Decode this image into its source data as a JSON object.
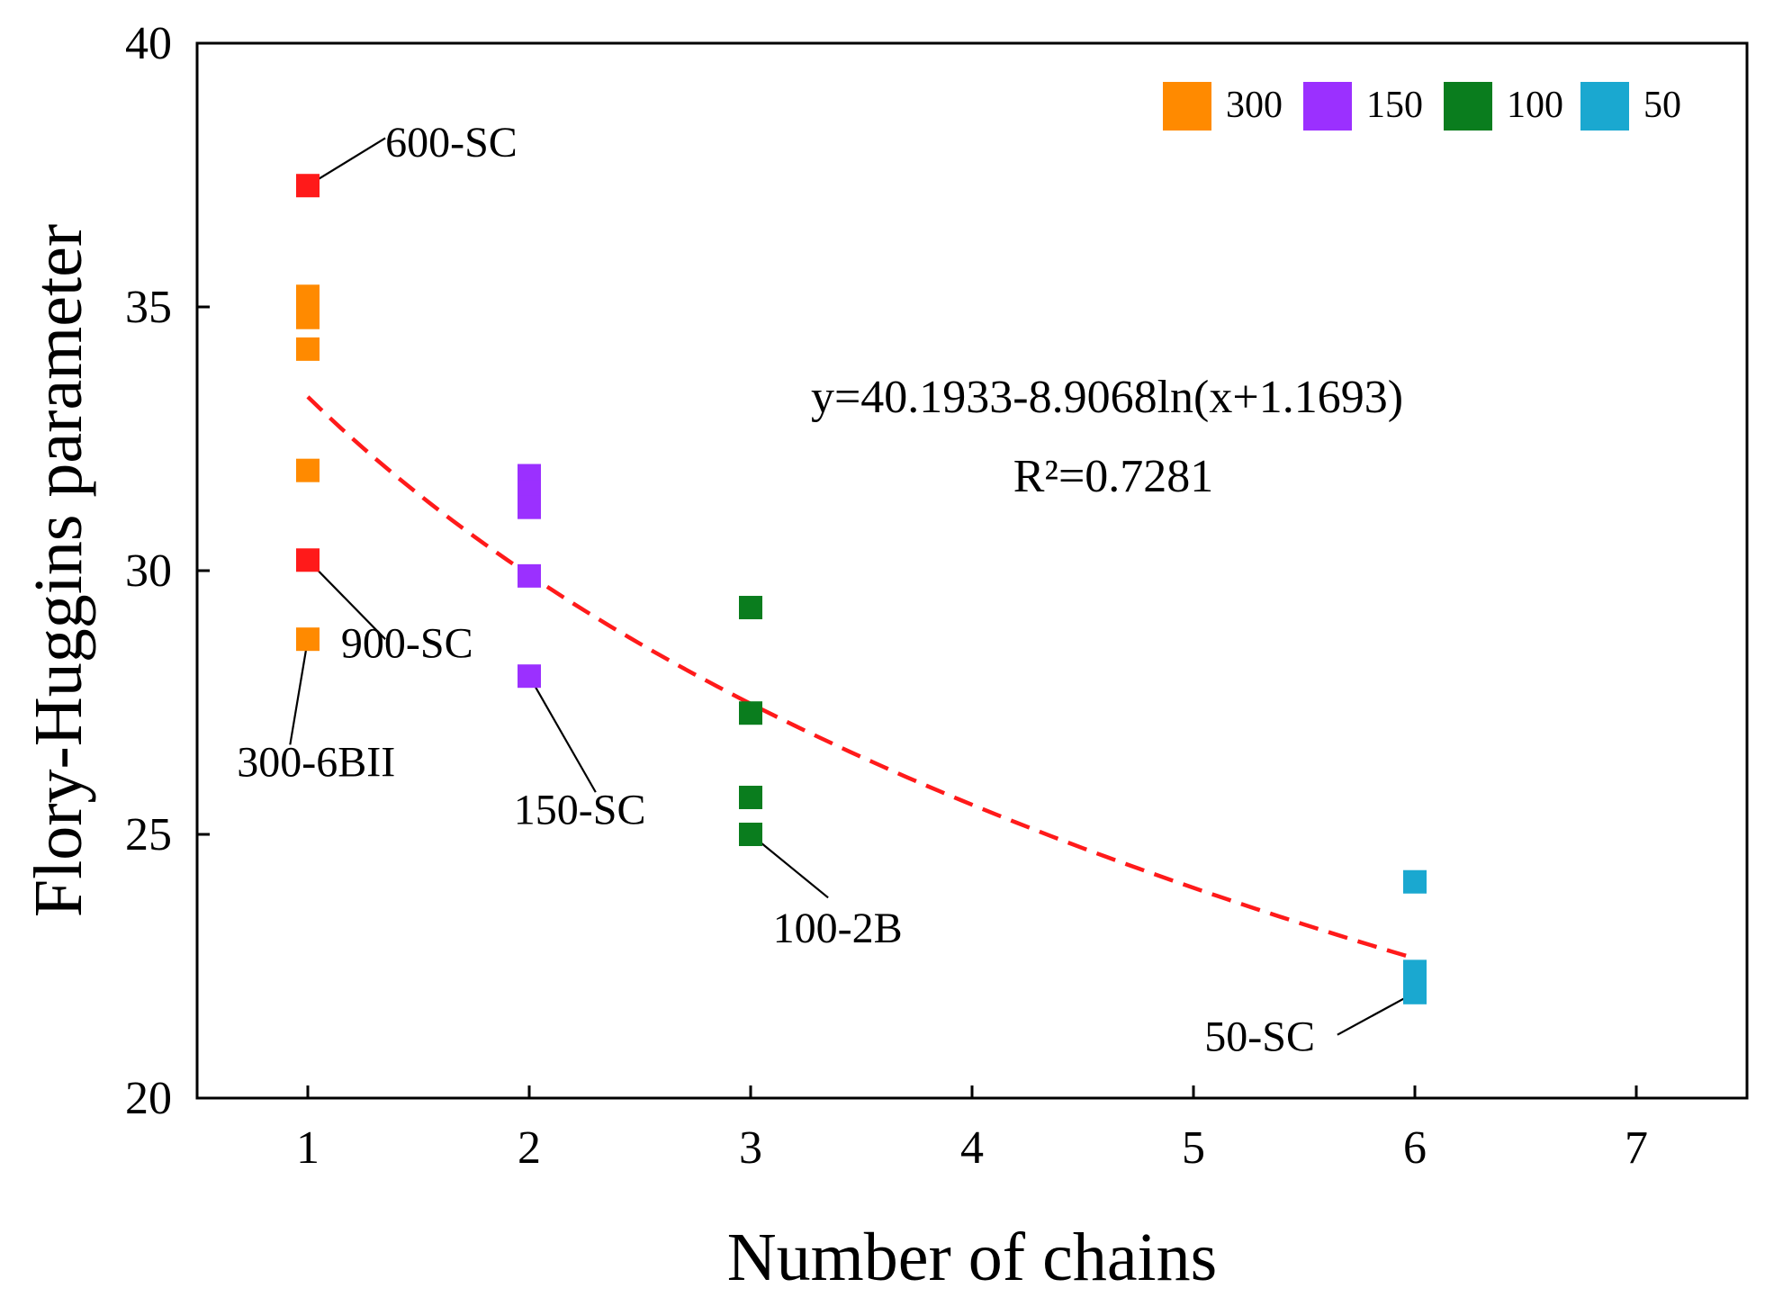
{
  "chart_data": {
    "type": "scatter",
    "xlabel": "Number of chains",
    "ylabel": "Flory-Huggins parameter",
    "xlim": [
      0.5,
      7.5
    ],
    "ylim": [
      20,
      40
    ],
    "xticks": [
      "1",
      "2",
      "3",
      "4",
      "5",
      "6",
      "7"
    ],
    "yticks": [
      "20",
      "25",
      "30",
      "35",
      "40"
    ],
    "grid": false,
    "legend_position": "top-right",
    "series": [
      {
        "name": "300",
        "color": "#ff8a00",
        "points": [
          [
            1,
            35.2
          ],
          [
            1,
            34.8
          ],
          [
            1,
            34.2
          ],
          [
            1,
            31.9
          ],
          [
            1,
            28.7
          ]
        ]
      },
      {
        "name": "150",
        "color": "#9b30ff",
        "points": [
          [
            2,
            31.8
          ],
          [
            2,
            31.5
          ],
          [
            2,
            31.2
          ],
          [
            2,
            29.9
          ],
          [
            2,
            28.0
          ]
        ]
      },
      {
        "name": "100",
        "color": "#0a7d1e",
        "points": [
          [
            3,
            29.3
          ],
          [
            3,
            27.3
          ],
          [
            3,
            25.7
          ],
          [
            3,
            25.0
          ]
        ]
      },
      {
        "name": "50",
        "color": "#1aa8d0",
        "points": [
          [
            6,
            24.1
          ],
          [
            6,
            22.4
          ],
          [
            6,
            22.0
          ]
        ]
      }
    ],
    "highlight_points": {
      "color": "#ff1a1a",
      "points": [
        [
          1,
          37.3
        ],
        [
          1,
          30.2
        ]
      ]
    },
    "fit": {
      "equation": "y=40.1933-8.9068ln(x+1.1693)",
      "r2": "R²=0.7281",
      "a": 40.1933,
      "b": 8.9068,
      "c": 1.1693,
      "x_range": [
        1,
        6
      ],
      "color": "#ff1a1a",
      "style": "dashed"
    },
    "annotations": [
      {
        "text": "600-SC",
        "point": [
          1,
          37.3
        ],
        "anchor": [
          1.35,
          38.2
        ],
        "text_pos": [
          1.35,
          37.85
        ]
      },
      {
        "text": "900-SC",
        "point": [
          1,
          30.2
        ],
        "anchor": [
          1.35,
          28.7
        ],
        "text_pos": [
          1.15,
          28.35
        ]
      },
      {
        "text": "300-6BII",
        "point": [
          1,
          28.7
        ],
        "anchor": [
          0.92,
          26.7
        ],
        "text_pos": [
          0.68,
          26.1
        ]
      },
      {
        "text": "150-SC",
        "point": [
          2,
          28.0
        ],
        "anchor": [
          2.3,
          25.8
        ],
        "text_pos": [
          1.93,
          25.2
        ]
      },
      {
        "text": "100-2B",
        "point": [
          3,
          25.0
        ],
        "anchor": [
          3.35,
          23.8
        ],
        "text_pos": [
          3.1,
          22.95
        ]
      },
      {
        "text": "50-SC",
        "point": [
          6,
          22.0
        ],
        "anchor": [
          5.65,
          21.2
        ],
        "text_pos": [
          5.05,
          20.9
        ]
      }
    ]
  }
}
